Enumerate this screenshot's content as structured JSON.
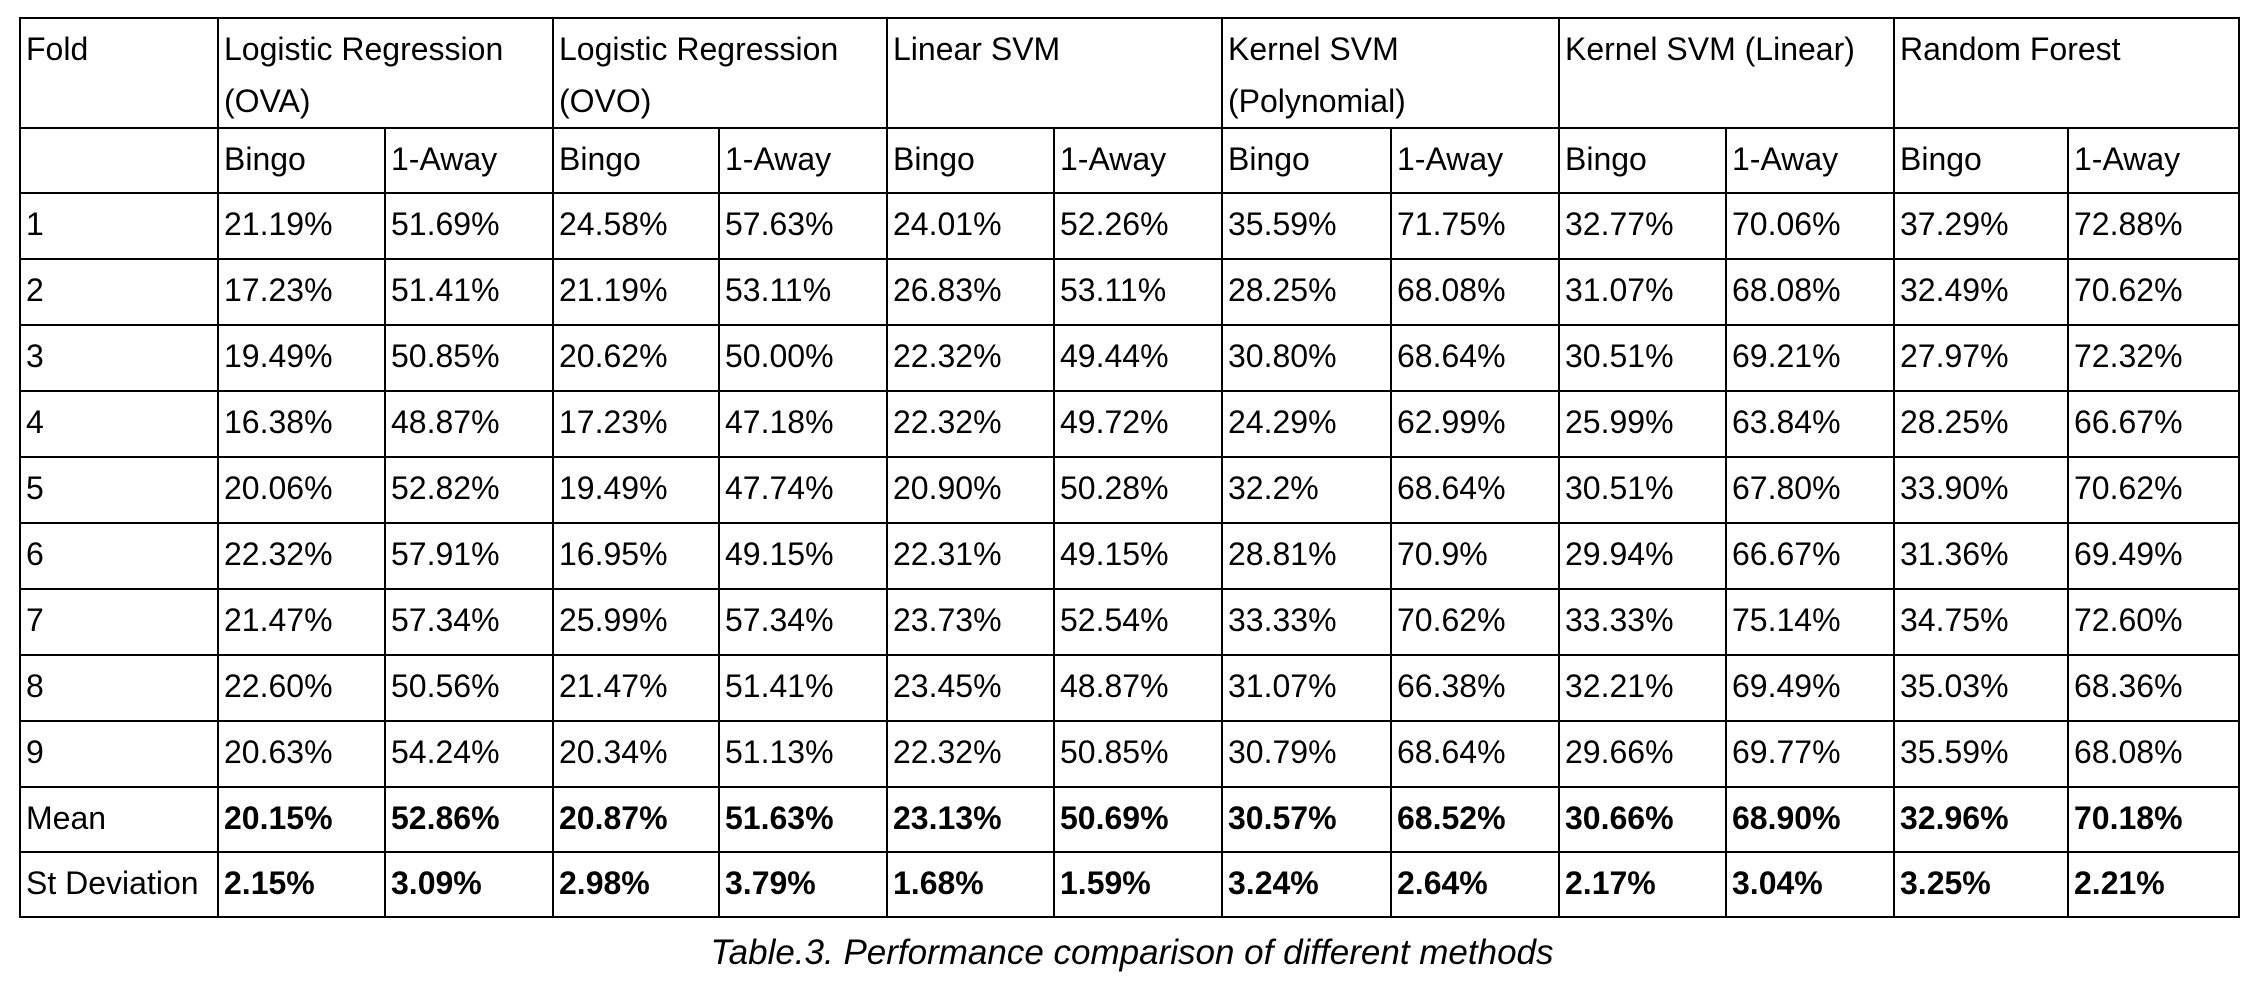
{
  "table": {
    "fold_header": "Fold",
    "methods": [
      "Logistic Regression (OVA)",
      "Logistic Regression (OVO)",
      "Linear SVM",
      "Kernel SVM (Polynomial)",
      "Kernel SVM (Linear)",
      "Random Forest"
    ],
    "subheaders": [
      "Bingo",
      "1-Away"
    ],
    "rows": [
      {
        "label": "1",
        "values": [
          "21.19%",
          "51.69%",
          "24.58%",
          "57.63%",
          "24.01%",
          "52.26%",
          "35.59%",
          "71.75%",
          "32.77%",
          "70.06%",
          "37.29%",
          "72.88%"
        ]
      },
      {
        "label": "2",
        "values": [
          "17.23%",
          "51.41%",
          "21.19%",
          "53.11%",
          "26.83%",
          "53.11%",
          "28.25%",
          "68.08%",
          "31.07%",
          "68.08%",
          "32.49%",
          "70.62%"
        ]
      },
      {
        "label": "3",
        "values": [
          "19.49%",
          "50.85%",
          "20.62%",
          "50.00%",
          "22.32%",
          "49.44%",
          "30.80%",
          "68.64%",
          "30.51%",
          "69.21%",
          "27.97%",
          "72.32%"
        ]
      },
      {
        "label": "4",
        "values": [
          "16.38%",
          "48.87%",
          "17.23%",
          "47.18%",
          "22.32%",
          "49.72%",
          "24.29%",
          "62.99%",
          "25.99%",
          "63.84%",
          "28.25%",
          "66.67%"
        ]
      },
      {
        "label": "5",
        "values": [
          "20.06%",
          "52.82%",
          "19.49%",
          "47.74%",
          "20.90%",
          "50.28%",
          "32.2%",
          "68.64%",
          "30.51%",
          "67.80%",
          "33.90%",
          "70.62%"
        ]
      },
      {
        "label": "6",
        "values": [
          "22.32%",
          "57.91%",
          "16.95%",
          "49.15%",
          "22.31%",
          "49.15%",
          "28.81%",
          "70.9%",
          "29.94%",
          "66.67%",
          "31.36%",
          "69.49%"
        ]
      },
      {
        "label": "7",
        "values": [
          "21.47%",
          "57.34%",
          "25.99%",
          "57.34%",
          "23.73%",
          "52.54%",
          "33.33%",
          "70.62%",
          "33.33%",
          "75.14%",
          "34.75%",
          "72.60%"
        ]
      },
      {
        "label": "8",
        "values": [
          "22.60%",
          "50.56%",
          "21.47%",
          "51.41%",
          "23.45%",
          "48.87%",
          "31.07%",
          "66.38%",
          "32.21%",
          "69.49%",
          "35.03%",
          "68.36%"
        ]
      },
      {
        "label": "9",
        "values": [
          "20.63%",
          "54.24%",
          "20.34%",
          "51.13%",
          "22.32%",
          "50.85%",
          "30.79%",
          "68.64%",
          "29.66%",
          "69.77%",
          "35.59%",
          "68.08%"
        ]
      }
    ],
    "summary": [
      {
        "label": "Mean",
        "values": [
          "20.15%",
          "52.86%",
          "20.87%",
          "51.63%",
          "23.13%",
          "50.69%",
          "30.57%",
          "68.52%",
          "30.66%",
          "68.90%",
          "32.96%",
          "70.18%"
        ]
      },
      {
        "label": "St Deviation",
        "values": [
          "2.15%",
          "3.09%",
          "2.98%",
          "3.79%",
          "1.68%",
          "1.59%",
          "3.24%",
          "2.64%",
          "2.17%",
          "3.04%",
          "3.25%",
          "2.21%"
        ]
      }
    ]
  },
  "caption": "Table.3.  Performance comparison of different methods"
}
